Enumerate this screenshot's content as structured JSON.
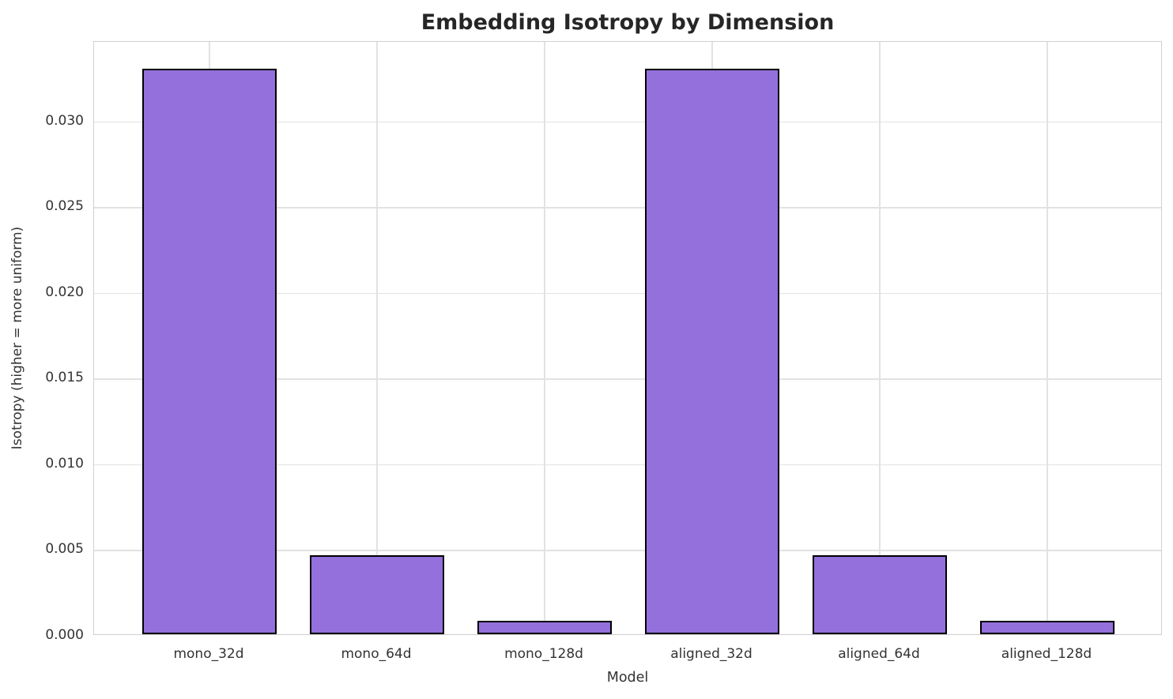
{
  "chart_data": {
    "type": "bar",
    "title": "Embedding Isotropy by Dimension",
    "xlabel": "Model",
    "ylabel": "Isotropy (higher = more uniform)",
    "categories": [
      "mono_32d",
      "mono_64d",
      "mono_128d",
      "aligned_32d",
      "aligned_64d",
      "aligned_128d"
    ],
    "values": [
      0.033,
      0.0046,
      0.0008,
      0.033,
      0.0046,
      0.0008
    ],
    "yticks": [
      0.0,
      0.005,
      0.01,
      0.015,
      0.02,
      0.025,
      0.03
    ],
    "ytick_labels": [
      "0.000",
      "0.005",
      "0.010",
      "0.015",
      "0.020",
      "0.025",
      "0.030"
    ],
    "ylim": [
      0,
      0.03465
    ],
    "grid": true,
    "legend": "none",
    "colors": {
      "bar_fill": "#9370DB",
      "bar_edge": "#000000",
      "grid_line": "#e2e2e2",
      "spine": "#d0d0d0",
      "tick_text": "#333333",
      "title_text": "#262626",
      "background": "#ffffff"
    }
  }
}
